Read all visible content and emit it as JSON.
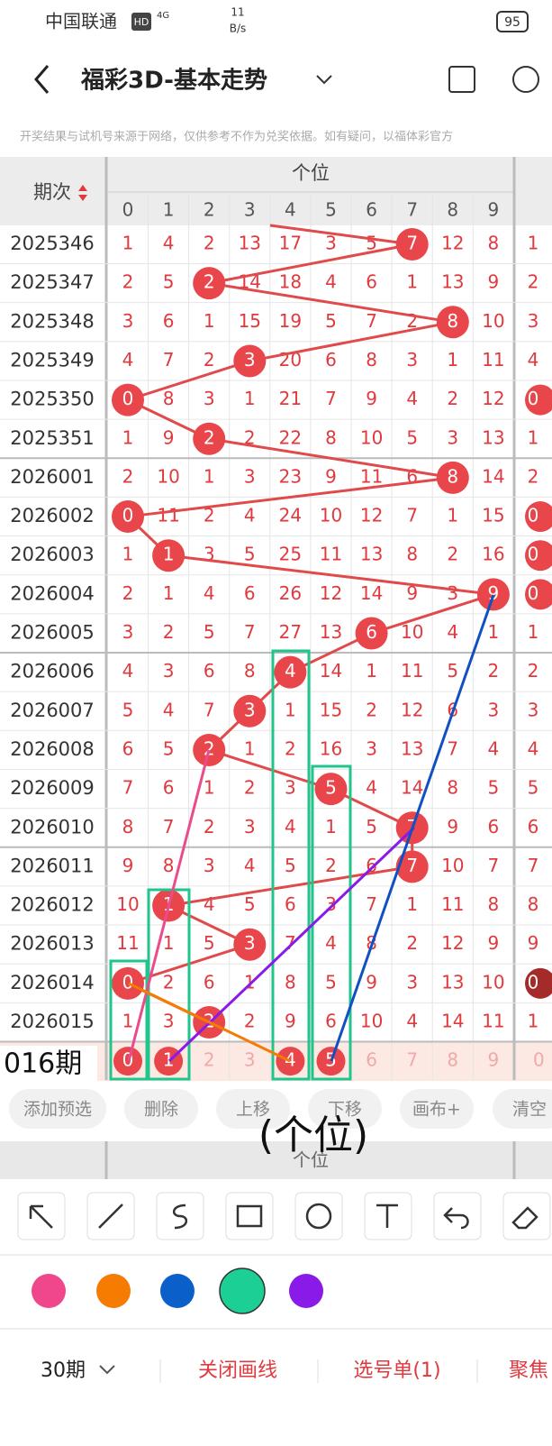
{
  "status": {
    "carrier": "中国联通",
    "hd": "HD",
    "net": "4G",
    "speed": "11",
    "speed_unit": "B/s",
    "battery": "95"
  },
  "header": {
    "title": "福彩3D-基本走势"
  },
  "disclaimer": "开奖结果与试机号来源于网络，仅供参考不作为兑奖依据。如有疑问，以福体彩官方",
  "table": {
    "period_header": "期次",
    "group_header": "个位",
    "digits": [
      0,
      1,
      2,
      3,
      4,
      5,
      6,
      7,
      8,
      9
    ],
    "rows": [
      {
        "period": "2025346",
        "cells": [
          1,
          4,
          2,
          13,
          17,
          3,
          5,
          7,
          12,
          8
        ],
        "hit": 7,
        "extra": 1
      },
      {
        "period": "2025347",
        "cells": [
          2,
          5,
          2,
          14,
          18,
          4,
          6,
          1,
          13,
          9
        ],
        "hit": 2,
        "extra": 2
      },
      {
        "period": "2025348",
        "cells": [
          3,
          6,
          1,
          15,
          19,
          5,
          7,
          2,
          8,
          10
        ],
        "hit": 8,
        "extra": 3
      },
      {
        "period": "2025349",
        "cells": [
          4,
          7,
          2,
          3,
          20,
          6,
          8,
          3,
          1,
          11
        ],
        "hit": 3,
        "extra": 4
      },
      {
        "period": "2025350",
        "cells": [
          0,
          8,
          3,
          1,
          21,
          7,
          9,
          4,
          2,
          12
        ],
        "hit": 0,
        "extra": 0
      },
      {
        "period": "2025351",
        "cells": [
          1,
          9,
          2,
          2,
          22,
          8,
          10,
          5,
          3,
          13
        ],
        "hit": 2,
        "extra": 1
      },
      {
        "period": "2026001",
        "cells": [
          2,
          10,
          1,
          3,
          23,
          9,
          11,
          6,
          8,
          14
        ],
        "hit": 8,
        "extra": 2
      },
      {
        "period": "2026002",
        "cells": [
          0,
          11,
          2,
          4,
          24,
          10,
          12,
          7,
          1,
          15
        ],
        "hit": 0,
        "extra": 0
      },
      {
        "period": "2026003",
        "cells": [
          1,
          1,
          3,
          5,
          25,
          11,
          13,
          8,
          2,
          16
        ],
        "hit": 1,
        "extra": 0
      },
      {
        "period": "2026004",
        "cells": [
          2,
          1,
          4,
          6,
          26,
          12,
          14,
          9,
          3,
          9
        ],
        "hit": 9,
        "extra": 0
      },
      {
        "period": "2026005",
        "cells": [
          3,
          2,
          5,
          7,
          27,
          13,
          6,
          10,
          4,
          1
        ],
        "hit": 6,
        "extra": 1
      },
      {
        "period": "2026006",
        "cells": [
          4,
          3,
          6,
          8,
          4,
          14,
          1,
          11,
          5,
          2
        ],
        "hit": 4,
        "extra": 2
      },
      {
        "period": "2026007",
        "cells": [
          5,
          4,
          7,
          3,
          1,
          15,
          2,
          12,
          6,
          3
        ],
        "hit": 3,
        "extra": 3
      },
      {
        "period": "2026008",
        "cells": [
          6,
          5,
          2,
          1,
          2,
          16,
          3,
          13,
          7,
          4
        ],
        "hit": 2,
        "extra": 4
      },
      {
        "period": "2026009",
        "cells": [
          7,
          6,
          1,
          2,
          3,
          5,
          4,
          14,
          8,
          5
        ],
        "hit": 5,
        "extra": 5
      },
      {
        "period": "2026010",
        "cells": [
          8,
          7,
          2,
          3,
          4,
          1,
          5,
          7,
          9,
          6
        ],
        "hit": 7,
        "extra": 6
      },
      {
        "period": "2026011",
        "cells": [
          9,
          8,
          3,
          4,
          5,
          2,
          6,
          7,
          10,
          7
        ],
        "hit": 7,
        "extra": 7
      },
      {
        "period": "2026012",
        "cells": [
          10,
          1,
          4,
          5,
          6,
          3,
          7,
          1,
          11,
          8
        ],
        "hit": 1,
        "extra": 8
      },
      {
        "period": "2026013",
        "cells": [
          11,
          1,
          5,
          3,
          7,
          4,
          8,
          2,
          12,
          9
        ],
        "hit": 3,
        "extra": 9
      },
      {
        "period": "2026014",
        "cells": [
          0,
          2,
          6,
          1,
          8,
          5,
          9,
          3,
          13,
          10
        ],
        "hit": 0,
        "extra": 0
      },
      {
        "period": "2026015",
        "cells": [
          1,
          3,
          2,
          2,
          9,
          6,
          10,
          4,
          14,
          11
        ],
        "hit": 2,
        "extra": 1
      }
    ],
    "partial_row": {
      "label": "016期",
      "cells": [
        0,
        1,
        2,
        3,
        4,
        5,
        6,
        7,
        8,
        9
      ],
      "hits": [
        0,
        1,
        4,
        5
      ],
      "extra": 0
    }
  },
  "overlay_label": "(个位)",
  "actions": [
    "添加预选",
    "删除",
    "上移",
    "下移",
    "画布+",
    "清空"
  ],
  "footer": {
    "period_select": "30期",
    "close_lines": "关闭画线",
    "ticket": "选号单(1)",
    "focus": "聚焦"
  }
}
